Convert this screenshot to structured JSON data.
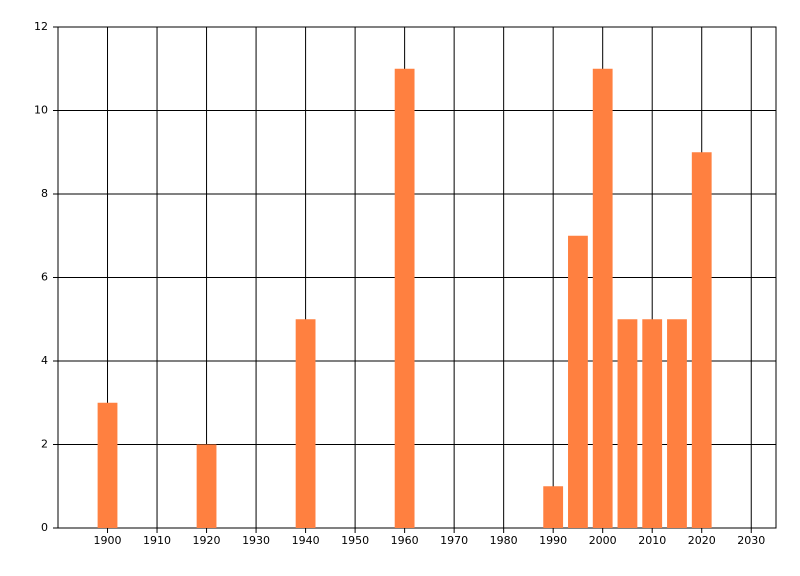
{
  "chart_data": {
    "type": "bar",
    "x": [
      1900,
      1920,
      1940,
      1960,
      1990,
      1995,
      2000,
      2005,
      2010,
      2015,
      2020
    ],
    "values": [
      3,
      2,
      5,
      11,
      1,
      7,
      11,
      5,
      5,
      5,
      9
    ],
    "color": "#ff8040",
    "xlim": [
      1890,
      2035
    ],
    "xticks": [
      1900,
      1910,
      1920,
      1930,
      1940,
      1950,
      1960,
      1970,
      1980,
      1990,
      2000,
      2010,
      2020,
      2030
    ],
    "ylim": [
      0,
      12
    ],
    "yticks": [
      0,
      2,
      4,
      6,
      8,
      10,
      12
    ],
    "grid": true
  }
}
